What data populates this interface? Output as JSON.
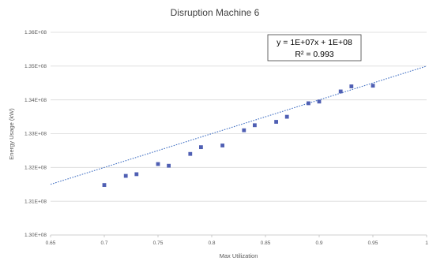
{
  "chart_data": {
    "type": "scatter",
    "title": "Disruption Machine 6",
    "xlabel": "Max Utilization",
    "ylabel": "Energy Usage (kW)",
    "xlim": [
      0.65,
      1.0
    ],
    "ylim": [
      130000000,
      136000000
    ],
    "x_ticks": [
      0.65,
      0.7,
      0.75,
      0.8,
      0.85,
      0.9,
      0.95,
      1
    ],
    "x_tick_labels": [
      "0.65",
      "0.7",
      "0.75",
      "0.8",
      "0.85",
      "0.9",
      "0.95",
      "1"
    ],
    "y_ticks": [
      130000000,
      131000000,
      132000000,
      133000000,
      134000000,
      135000000,
      136000000
    ],
    "y_tick_labels": [
      "1.30E+08",
      "1.31E+08",
      "1.32E+08",
      "1.33E+08",
      "1.34E+08",
      "1.35E+08",
      "1.36E+08"
    ],
    "grid": "horizontal",
    "series": [
      {
        "color": "#4f5fb3",
        "x": [
          0.7,
          0.72,
          0.73,
          0.75,
          0.76,
          0.78,
          0.79,
          0.81,
          0.83,
          0.84,
          0.86,
          0.87,
          0.89,
          0.9,
          0.92,
          0.93,
          0.95
        ],
        "y": [
          131480000,
          131750000,
          131800000,
          132100000,
          132050000,
          132400000,
          132600000,
          132650000,
          133100000,
          133250000,
          133350000,
          133500000,
          133900000,
          133950000,
          134250000,
          134400000,
          134420000
        ]
      }
    ],
    "trendline": {
      "type": "linear",
      "slope": 10000000,
      "intercept": 125000000,
      "color": "#4472c4",
      "style": "dotted",
      "equation": "y = 1E+07x + 1E+08",
      "r_squared": "R² = 0.993"
    }
  }
}
